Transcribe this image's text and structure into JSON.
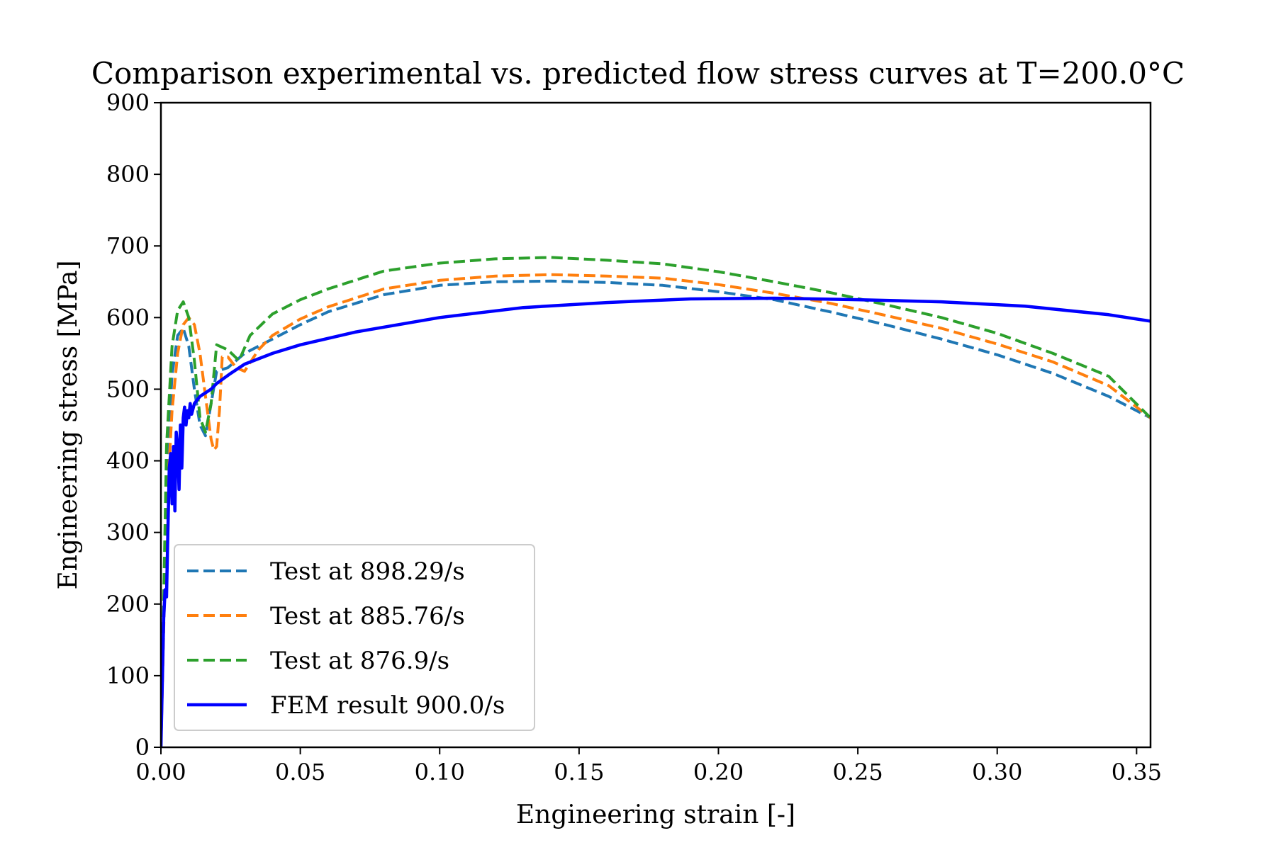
{
  "chart_data": {
    "type": "line",
    "title": "Comparison experimental vs. predicted flow stress curves at T=200.0°C",
    "xlabel": "Engineering strain [-]",
    "ylabel": "Engineering stress [MPa]",
    "xlim": [
      0,
      0.355
    ],
    "ylim": [
      0,
      900
    ],
    "x_ticks": [
      "0.00",
      "0.05",
      "0.10",
      "0.15",
      "0.20",
      "0.25",
      "0.30",
      "0.35"
    ],
    "y_ticks": [
      "0",
      "100",
      "200",
      "300",
      "400",
      "500",
      "600",
      "700",
      "800",
      "900"
    ],
    "grid": false,
    "legend_position": "lower-left",
    "series": [
      {
        "name": "Test at 898.29/s",
        "color": "#1f77b4",
        "style": "dashed",
        "x": [
          0.0,
          0.002,
          0.004,
          0.006,
          0.008,
          0.01,
          0.012,
          0.014,
          0.016,
          0.018,
          0.02,
          0.024,
          0.03,
          0.04,
          0.05,
          0.06,
          0.08,
          0.1,
          0.12,
          0.14,
          0.16,
          0.18,
          0.2,
          0.22,
          0.24,
          0.26,
          0.28,
          0.3,
          0.32,
          0.34,
          0.355
        ],
        "y": [
          0,
          380,
          520,
          575,
          585,
          560,
          500,
          450,
          435,
          480,
          525,
          530,
          550,
          570,
          590,
          608,
          632,
          645,
          650,
          651,
          649,
          645,
          636,
          625,
          608,
          590,
          570,
          548,
          522,
          490,
          460
        ]
      },
      {
        "name": "Test at 885.76/s",
        "color": "#ff7f0e",
        "style": "dashed",
        "x": [
          0.0,
          0.002,
          0.004,
          0.006,
          0.008,
          0.01,
          0.012,
          0.014,
          0.016,
          0.018,
          0.019,
          0.02,
          0.021,
          0.022,
          0.024,
          0.027,
          0.03,
          0.035,
          0.04,
          0.05,
          0.06,
          0.08,
          0.1,
          0.12,
          0.14,
          0.16,
          0.18,
          0.2,
          0.22,
          0.24,
          0.26,
          0.28,
          0.3,
          0.32,
          0.34,
          0.355
        ],
        "y": [
          0,
          330,
          470,
          550,
          590,
          600,
          590,
          550,
          490,
          430,
          415,
          420,
          470,
          545,
          545,
          530,
          525,
          555,
          575,
          598,
          615,
          640,
          652,
          658,
          660,
          658,
          655,
          646,
          634,
          620,
          603,
          585,
          563,
          538,
          505,
          460
        ]
      },
      {
        "name": "Test at 876.9/s",
        "color": "#2ca02c",
        "style": "dashed",
        "x": [
          0.0,
          0.002,
          0.004,
          0.006,
          0.008,
          0.01,
          0.012,
          0.014,
          0.016,
          0.018,
          0.02,
          0.024,
          0.028,
          0.032,
          0.036,
          0.04,
          0.05,
          0.06,
          0.08,
          0.1,
          0.12,
          0.14,
          0.16,
          0.18,
          0.2,
          0.22,
          0.24,
          0.26,
          0.28,
          0.3,
          0.32,
          0.34,
          0.355
        ],
        "y": [
          0,
          420,
          560,
          610,
          622,
          600,
          540,
          460,
          440,
          480,
          562,
          555,
          540,
          575,
          590,
          605,
          625,
          640,
          665,
          676,
          682,
          684,
          680,
          675,
          664,
          650,
          635,
          618,
          600,
          578,
          550,
          518,
          460
        ]
      },
      {
        "name": "FEM result 900.0/s",
        "color": "#0000ff",
        "style": "solid",
        "x": [
          0.0,
          0.001,
          0.0015,
          0.002,
          0.0025,
          0.003,
          0.0035,
          0.004,
          0.0045,
          0.005,
          0.0055,
          0.006,
          0.0065,
          0.007,
          0.0075,
          0.008,
          0.0085,
          0.009,
          0.0095,
          0.01,
          0.0105,
          0.011,
          0.012,
          0.013,
          0.014,
          0.016,
          0.018,
          0.02,
          0.025,
          0.03,
          0.04,
          0.05,
          0.07,
          0.1,
          0.13,
          0.16,
          0.19,
          0.22,
          0.25,
          0.28,
          0.31,
          0.34,
          0.355
        ],
        "y": [
          0,
          180,
          220,
          210,
          300,
          390,
          410,
          340,
          420,
          330,
          440,
          420,
          360,
          450,
          390,
          460,
          475,
          450,
          470,
          460,
          480,
          465,
          480,
          485,
          490,
          495,
          500,
          508,
          522,
          535,
          550,
          562,
          580,
          600,
          614,
          621,
          626,
          627,
          625,
          622,
          616,
          604,
          595
        ]
      }
    ]
  }
}
